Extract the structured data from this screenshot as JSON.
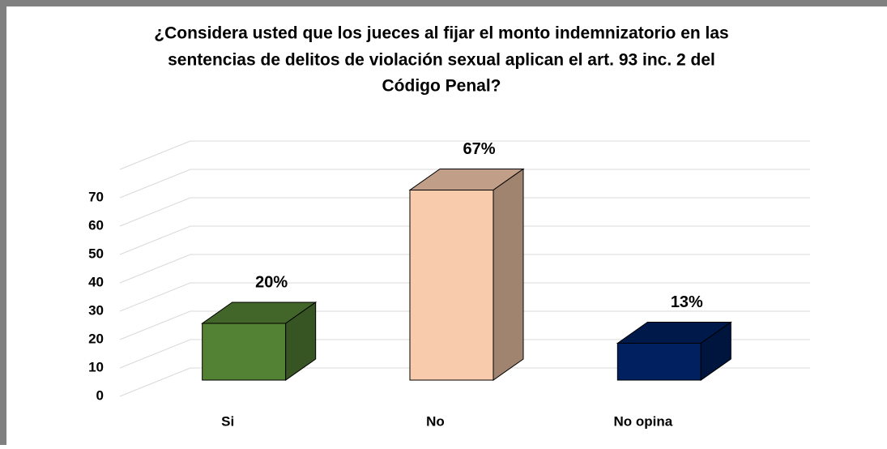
{
  "chart_data": {
    "type": "bar3d",
    "title": [
      "¿Considera usted que los jueces al fijar el monto indemnizatorio en las",
      "sentencias de delitos de violación sexual aplican el art. 93 inc. 2 del",
      "Código Penal?"
    ],
    "categories": [
      "Si",
      "No",
      "No opina"
    ],
    "values": [
      20,
      67,
      13
    ],
    "value_labels": [
      "20%",
      "67%",
      "13%"
    ],
    "colors": [
      "#548235",
      "#f8cbad",
      "#002060"
    ],
    "ylim": [
      0,
      80
    ],
    "yticks": [
      0,
      10,
      20,
      30,
      40,
      50,
      60,
      70
    ],
    "grid": true
  }
}
